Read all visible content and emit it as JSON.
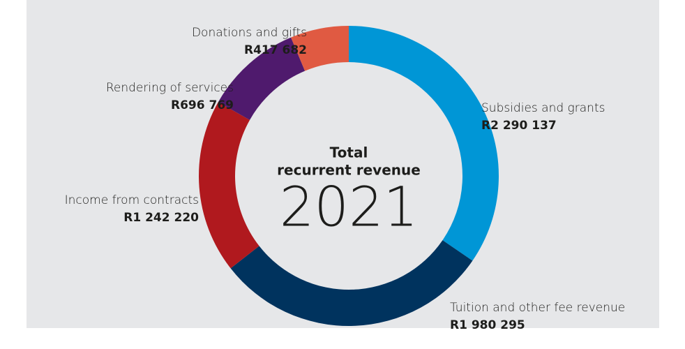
{
  "chart_data": {
    "type": "donut",
    "title": [
      "Total",
      "recurrent revenue"
    ],
    "subtitle": "2021",
    "categories": [
      "Subsidies and grants",
      "Tuition and other fee revenue",
      "Income from contracts",
      "Rendering of services",
      "Donations and gifts"
    ],
    "values": [
      2290137,
      1980295,
      1242220,
      696769,
      417682
    ],
    "value_labels": [
      "R2 290 137",
      "R1 980 295",
      "R1 242 220",
      "R696 769",
      "R417 682"
    ],
    "colors": [
      "#0096d6",
      "#00335e",
      "#b0191e",
      "#4f1a6d",
      "#e05a42"
    ]
  }
}
